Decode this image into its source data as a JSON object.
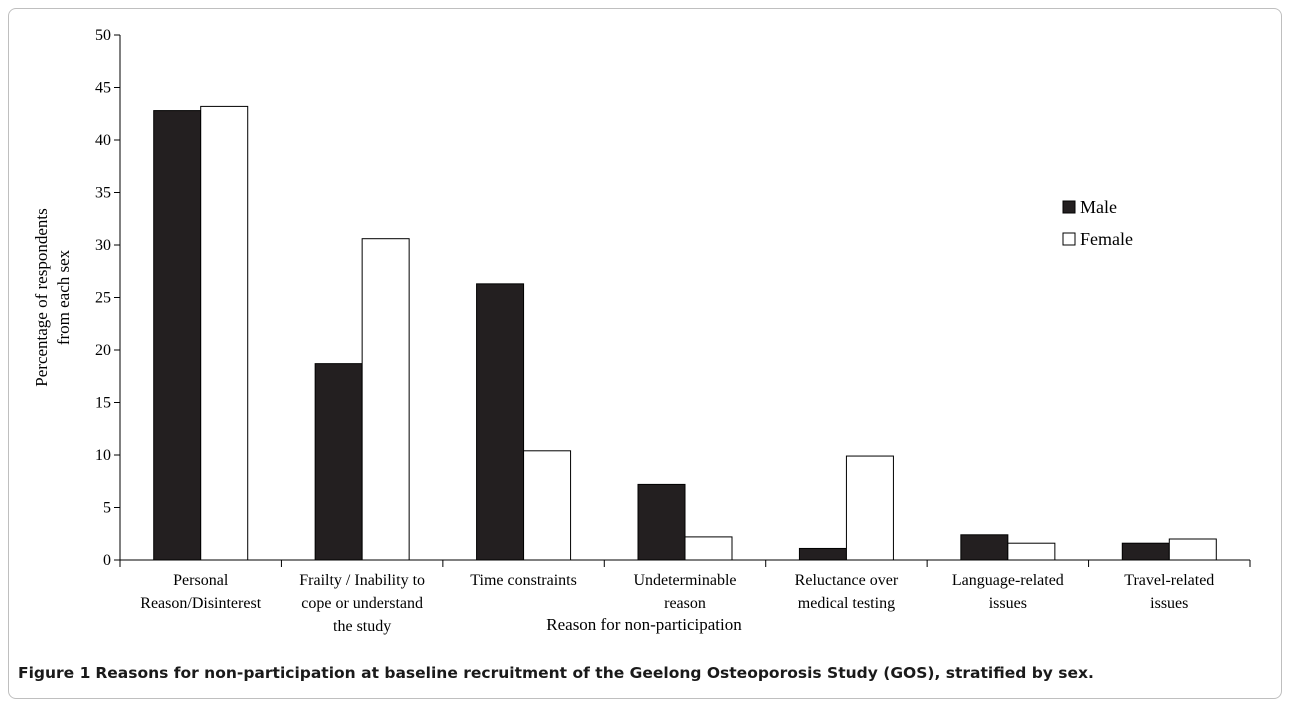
{
  "chart_data": {
    "type": "bar",
    "ylabel": [
      "Percentage of respondents",
      "from each sex"
    ],
    "xlabel": "Reason for non-participation",
    "ylim": [
      0,
      50
    ],
    "yticks": [
      "0",
      "5",
      "10",
      "15",
      "20",
      "25",
      "30",
      "35",
      "40",
      "45",
      "50"
    ],
    "categories": [
      [
        "Personal",
        "Reason/Disinterest"
      ],
      [
        "Frailty / Inability to",
        "cope or understand",
        "the study"
      ],
      [
        "Time constraints"
      ],
      [
        "Undeterminable",
        "reason"
      ],
      [
        "Reluctance over",
        "medical testing"
      ],
      [
        "Language-related",
        "issues"
      ],
      [
        "Travel-related",
        "issues"
      ]
    ],
    "series": [
      {
        "name": "Male",
        "color": "#231f20",
        "values": [
          42.8,
          18.7,
          26.3,
          7.2,
          1.1,
          2.4,
          1.6
        ]
      },
      {
        "name": "Female",
        "color": "#ffffff",
        "values": [
          43.2,
          30.6,
          10.4,
          2.2,
          9.9,
          1.6,
          2.0
        ]
      }
    ],
    "legend_position": "right",
    "grid": false
  },
  "caption": {
    "label": "Figure 1",
    "text": "Reasons for non-participation at baseline recruitment of the Geelong Osteoporosis Study (GOS), stratified by sex."
  }
}
